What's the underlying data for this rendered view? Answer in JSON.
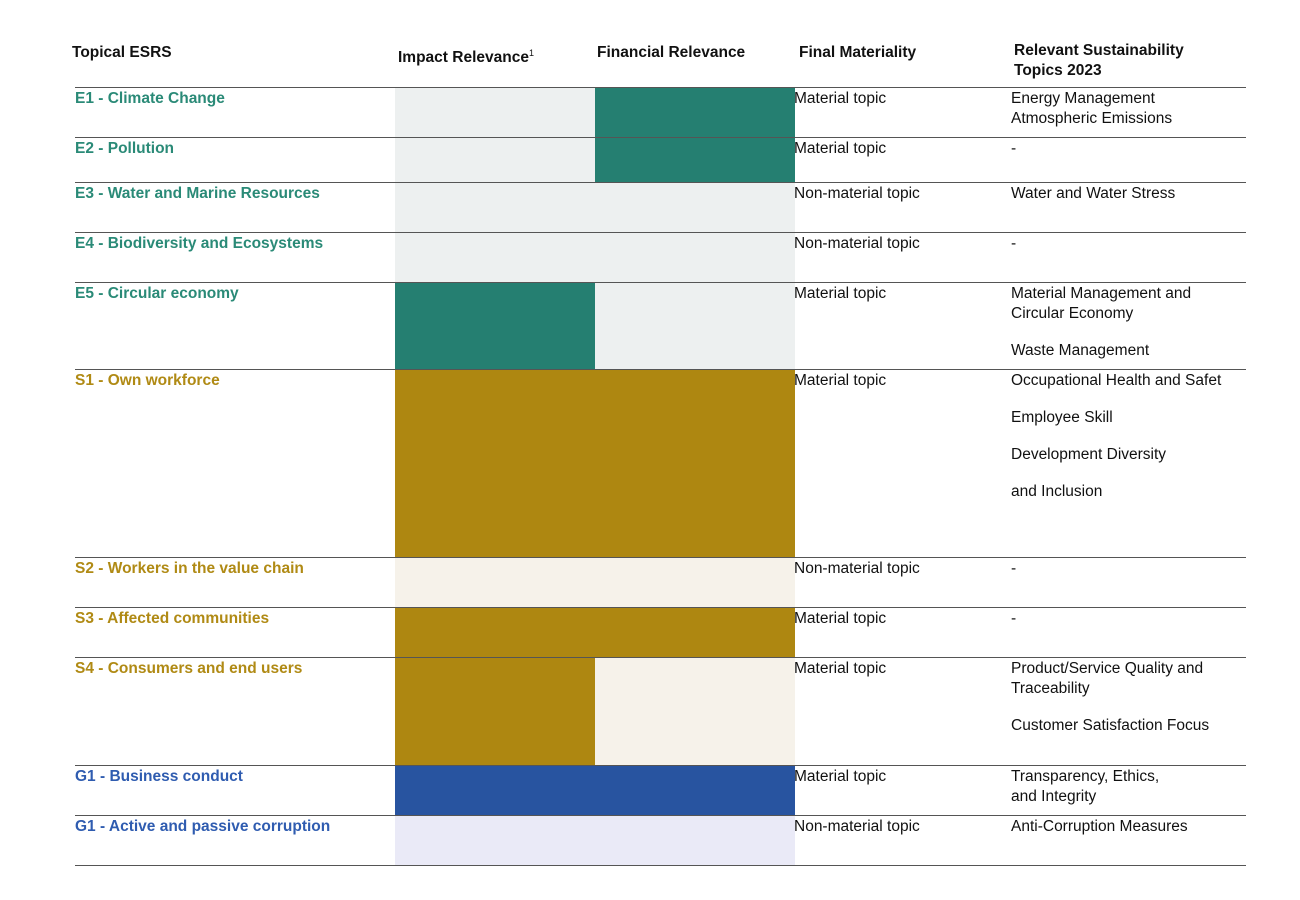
{
  "headers": {
    "topical": "Topical ESRS",
    "impact": "Impact Relevance",
    "impact_sup": "1",
    "financial": "Financial Relevance",
    "final": "Final Materiality",
    "relevant": "Relevant Sustainability Topics 2023"
  },
  "colors": {
    "env_dark": "#257f71",
    "env_light": "#edf0f0",
    "soc_dark": "#ae8711",
    "soc_light": "#f6f2ea",
    "gov_dark": "#2854a0",
    "gov_light": "#eaeaf7",
    "env_text": "#2a8a77",
    "soc_text": "#b08a14",
    "gov_text": "#2f5cb0"
  },
  "rows": [
    {
      "topic": "E1 - Climate Change",
      "group": "env",
      "impact": "light",
      "financial": "dark",
      "final": "Material topic",
      "relevant": [
        "Energy Management\nAtmospheric Emissions"
      ]
    },
    {
      "topic": "E2 - Pollution",
      "group": "env",
      "impact": "light",
      "financial": "dark",
      "final": "Material topic",
      "relevant": [
        "-"
      ]
    },
    {
      "topic": "E3 - Water and Marine Resources",
      "group": "env",
      "impact": "light",
      "financial": "light",
      "final": "Non-material topic",
      "relevant": [
        "Water and Water Stress"
      ]
    },
    {
      "topic": "E4 - Biodiversity and Ecosystems",
      "group": "env",
      "impact": "light",
      "financial": "light",
      "final": "Non-material topic",
      "relevant": [
        "-"
      ]
    },
    {
      "topic": "E5 - Circular economy",
      "group": "env",
      "impact": "dark",
      "financial": "light",
      "final": "Material topic",
      "relevant": [
        "Material Management and Circular Economy",
        "Waste Management"
      ]
    },
    {
      "topic": "S1 - Own workforce",
      "group": "soc",
      "impact": "dark",
      "financial": "dark",
      "final": "Material topic",
      "relevant": [
        "Occupational Health and Safet",
        "Employee Skill",
        "Development       Diversity",
        "and Inclusion"
      ]
    },
    {
      "topic": "S2 - Workers in the value chain",
      "group": "soc",
      "impact": "light",
      "financial": "light",
      "final": "Non-material topic",
      "relevant": [
        "-"
      ]
    },
    {
      "topic": "S3 - Affected communities",
      "group": "soc",
      "impact": "dark",
      "financial": "dark",
      "final": "Material topic",
      "relevant": [
        "-"
      ]
    },
    {
      "topic": "S4 - Consumers and end users",
      "group": "soc",
      "impact": "dark",
      "financial": "light",
      "final": "Material topic",
      "relevant": [
        "Product/Service Quality and Traceability",
        "Customer Satisfaction Focus"
      ]
    },
    {
      "topic": "G1 - Business conduct",
      "group": "gov",
      "impact": "dark",
      "financial": "dark",
      "final": "Material topic",
      "relevant": [
        "Transparency, Ethics,\nand Integrity"
      ]
    },
    {
      "topic": "G1 - Active and passive corruption",
      "group": "gov",
      "impact": "light",
      "financial": "light",
      "final": "Non-material topic",
      "relevant": [
        "Anti-Corruption Measures"
      ]
    }
  ]
}
